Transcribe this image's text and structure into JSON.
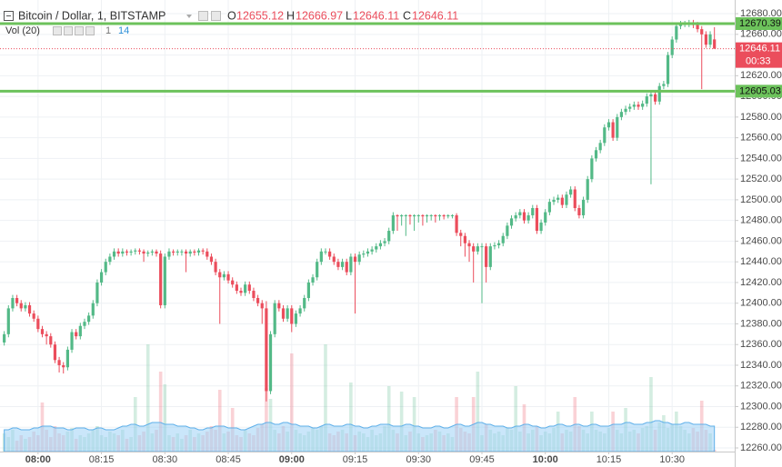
{
  "chart_data": {
    "type": "candlestick",
    "title": "Bitcoin / Dollar, 1, BITSTAMP",
    "ohlc_letters": [
      "O",
      "H",
      "L",
      "C"
    ],
    "volume_title": "Vol (20)",
    "countdown": "00:33",
    "up_color": "#53b987",
    "down_color": "#eb4d5c",
    "ma_color": "#9fd2f5",
    "grid": true,
    "xlim": [
      -1,
      172.8
    ],
    "xticks": [
      {
        "value": 8,
        "label": "08:00"
      },
      {
        "value": 23,
        "label": "08:15"
      },
      {
        "value": 38,
        "label": "08:30"
      },
      {
        "value": 53,
        "label": "08:45"
      },
      {
        "value": 68,
        "label": "09:00"
      },
      {
        "value": 83,
        "label": "09:15"
      },
      {
        "value": 98,
        "label": "09:30"
      },
      {
        "value": 113,
        "label": "09:45"
      },
      {
        "value": 128,
        "label": "10:00"
      },
      {
        "value": 143,
        "label": "10:15"
      },
      {
        "value": 158,
        "label": "10:30"
      }
    ],
    "ylim": [
      12256.5,
      12686.2
    ],
    "yticks": [
      {
        "value": 12260,
        "label": "12260.00"
      },
      {
        "value": 12280,
        "label": "12280.00"
      },
      {
        "value": 12300,
        "label": "12300.00"
      },
      {
        "value": 12320,
        "label": "12320.00"
      },
      {
        "value": 12340,
        "label": "12340.00"
      },
      {
        "value": 12360,
        "label": "12360.00"
      },
      {
        "value": 12380,
        "label": "12380.00"
      },
      {
        "value": 12400,
        "label": "12400.00"
      },
      {
        "value": 12420,
        "label": "12420.00"
      },
      {
        "value": 12440,
        "label": "12440.00"
      },
      {
        "value": 12460,
        "label": "12460.00"
      },
      {
        "value": 12480,
        "label": "12480.00"
      },
      {
        "value": 12500,
        "label": "12500.00"
      },
      {
        "value": 12520,
        "label": "12520.00"
      },
      {
        "value": 12540,
        "label": "12540.00"
      },
      {
        "value": 12560,
        "label": "12560.00"
      },
      {
        "value": 12580,
        "label": "12580.00"
      },
      {
        "value": 12600,
        "label": "12600.00"
      },
      {
        "value": 12620,
        "label": "12620.00"
      },
      {
        "value": 12640,
        "label": "12640.00"
      },
      {
        "value": 12660,
        "label": "12660.00"
      },
      {
        "value": 12680,
        "label": "12680.00"
      }
    ],
    "levels": [
      {
        "value": 12670.39,
        "color": "#6cc25b"
      },
      {
        "value": 12605.03,
        "color": "#6cc25b"
      }
    ],
    "open": [
      12362,
      12370,
      12395,
      12405,
      12400,
      12395,
      12398,
      12390,
      12385,
      12375,
      12370,
      12368,
      12360,
      12345,
      12340,
      12338,
      12355,
      12372,
      12368,
      12378,
      12382,
      12388,
      12400,
      12420,
      12430,
      12440,
      12445,
      12450,
      12448,
      12450,
      12449,
      12450,
      12451,
      12450,
      12448,
      12449,
      12450,
      12448,
      12398,
      12445,
      12450,
      12449,
      12450,
      12450,
      12448,
      12450,
      12449,
      12451,
      12450,
      12445,
      12440,
      12430,
      12425,
      12428,
      12422,
      12418,
      12412,
      12410,
      12418,
      12412,
      12405,
      12400,
      12395,
      12315,
      12370,
      12400,
      12395,
      12385,
      12395,
      12380,
      12390,
      12395,
      12405,
      12420,
      12425,
      12440,
      12450,
      12450,
      12445,
      12440,
      12435,
      12440,
      12430,
      12445,
      12440,
      12447,
      12448,
      12450,
      12452,
      12455,
      12458,
      12460,
      12470,
      12485,
      12484,
      12485,
      12485,
      12484,
      12485,
      12485,
      12484,
      12485,
      12485,
      12484,
      12485,
      12484,
      12485,
      12485,
      12468,
      12465,
      12458,
      12455,
      12450,
      12455,
      12455,
      12435,
      12455,
      12456,
      12458,
      12465,
      12475,
      12482,
      12485,
      12488,
      12480,
      12485,
      12492,
      12470,
      12478,
      12488,
      12498,
      12500,
      12502,
      12495,
      12505,
      12510,
      12492,
      12485,
      12500,
      12520,
      12540,
      12548,
      12555,
      12570,
      12575,
      12560,
      12580,
      12585,
      12588,
      12590,
      12592,
      12590,
      12593,
      12600,
      12602,
      12595,
      12610,
      12612,
      12640,
      12655,
      12668,
      12670,
      12670,
      12671,
      12669,
      12665,
      12660,
      12650,
      12655.12
    ],
    "high": [
      12373,
      12398,
      12408,
      12408,
      12403,
      12401,
      12401,
      12393,
      12388,
      12378,
      12373,
      12371,
      12363,
      12348,
      12343,
      12358,
      12375,
      12375,
      12381,
      12385,
      12391,
      12403,
      12423,
      12433,
      12443,
      12448,
      12453,
      12453,
      12453,
      12452,
      12452,
      12453,
      12453,
      12452,
      12451,
      12452,
      12452,
      12451,
      12448,
      12453,
      12452,
      12452,
      12452,
      12452,
      12452,
      12452,
      12453,
      12453,
      12453,
      12448,
      12443,
      12433,
      12431,
      12431,
      12425,
      12421,
      12415,
      12421,
      12421,
      12415,
      12408,
      12403,
      12402,
      12373,
      12403,
      12403,
      12398,
      12398,
      12398,
      12393,
      12398,
      12408,
      12423,
      12428,
      12443,
      12453,
      12453,
      12453,
      12448,
      12443,
      12443,
      12443,
      12448,
      12448,
      12450,
      12451,
      12453,
      12455,
      12458,
      12461,
      12463,
      12473,
      12488,
      12486,
      12486,
      12486,
      12486,
      12486,
      12486,
      12486,
      12486,
      12486,
      12486,
      12486,
      12486,
      12486,
      12486,
      12487,
      12471,
      12468,
      12461,
      12458,
      12458,
      12458,
      12458,
      12458,
      12459,
      12461,
      12468,
      12478,
      12485,
      12488,
      12491,
      12491,
      12488,
      12495,
      12495,
      12481,
      12491,
      12501,
      12503,
      12505,
      12505,
      12508,
      12513,
      12513,
      12495,
      12503,
      12523,
      12543,
      12551,
      12558,
      12573,
      12578,
      12578,
      12583,
      12588,
      12591,
      12593,
      12595,
      12595,
      12596,
      12603,
      12605,
      12605,
      12613,
      12615,
      12643,
      12658,
      12671,
      12673,
      12673,
      12674,
      12674,
      12672,
      12668,
      12663,
      12663,
      12666.97
    ],
    "low": [
      12359,
      12367,
      12392,
      12397,
      12392,
      12392,
      12387,
      12382,
      12372,
      12367,
      12360,
      12357,
      12342,
      12333,
      12332,
      12335,
      12352,
      12365,
      12365,
      12375,
      12379,
      12385,
      12397,
      12417,
      12427,
      12437,
      12442,
      12445,
      12445,
      12446,
      12446,
      12447,
      12447,
      12440,
      12445,
      12446,
      12445,
      12395,
      12395,
      12442,
      12446,
      12446,
      12446,
      12430,
      12445,
      12446,
      12446,
      12447,
      12442,
      12437,
      12427,
      12380,
      12422,
      12419,
      12415,
      12409,
      12407,
      12407,
      12409,
      12402,
      12397,
      12380,
      12305,
      12312,
      12367,
      12392,
      12382,
      12382,
      12372,
      12377,
      12387,
      12392,
      12402,
      12417,
      12422,
      12437,
      12447,
      12442,
      12437,
      12432,
      12432,
      12427,
      12427,
      12390,
      12437,
      12444,
      12445,
      12447,
      12449,
      12452,
      12455,
      12457,
      12467,
      12470,
      12475,
      12465,
      12476,
      12470,
      12478,
      12475,
      12478,
      12480,
      12478,
      12480,
      12481,
      12482,
      12482,
      12465,
      12455,
      12445,
      12440,
      12420,
      12447,
      12400,
      12420,
      12432,
      12452,
      12453,
      12455,
      12462,
      12472,
      12479,
      12482,
      12477,
      12477,
      12482,
      12467,
      12467,
      12475,
      12485,
      12495,
      12497,
      12492,
      12492,
      12502,
      12489,
      12482,
      12482,
      12497,
      12517,
      12537,
      12545,
      12552,
      12567,
      12557,
      12557,
      12577,
      12582,
      12585,
      12587,
      12587,
      12587,
      12590,
      12515,
      12592,
      12592,
      12607,
      12609,
      12637,
      12652,
      12665,
      12667,
      12667,
      12666,
      12662,
      12607,
      12647,
      12647,
      12646.11
    ],
    "close": [
      12370,
      12395,
      12405,
      12400,
      12395,
      12398,
      12390,
      12385,
      12375,
      12370,
      12368,
      12360,
      12345,
      12340,
      12338,
      12355,
      12372,
      12368,
      12378,
      12382,
      12388,
      12400,
      12420,
      12430,
      12440,
      12445,
      12450,
      12448,
      12450,
      12449,
      12450,
      12451,
      12450,
      12448,
      12449,
      12450,
      12448,
      12398,
      12445,
      12450,
      12449,
      12450,
      12450,
      12448,
      12450,
      12449,
      12451,
      12450,
      12445,
      12440,
      12430,
      12425,
      12428,
      12422,
      12418,
      12412,
      12410,
      12418,
      12412,
      12405,
      12400,
      12395,
      12315,
      12370,
      12400,
      12395,
      12385,
      12395,
      12380,
      12390,
      12395,
      12405,
      12420,
      12425,
      12440,
      12450,
      12450,
      12445,
      12440,
      12435,
      12440,
      12430,
      12445,
      12440,
      12447,
      12448,
      12450,
      12452,
      12455,
      12458,
      12460,
      12470,
      12485,
      12484,
      12485,
      12485,
      12484,
      12485,
      12485,
      12484,
      12485,
      12485,
      12484,
      12485,
      12484,
      12485,
      12485,
      12468,
      12465,
      12458,
      12455,
      12450,
      12455,
      12455,
      12435,
      12455,
      12456,
      12458,
      12465,
      12475,
      12482,
      12485,
      12488,
      12480,
      12485,
      12492,
      12470,
      12478,
      12488,
      12498,
      12500,
      12502,
      12495,
      12505,
      12510,
      12492,
      12485,
      12500,
      12520,
      12540,
      12548,
      12555,
      12570,
      12575,
      12560,
      12580,
      12585,
      12588,
      12590,
      12592,
      12590,
      12593,
      12600,
      12602,
      12595,
      12610,
      12612,
      12640,
      12655,
      12668,
      12670,
      12670,
      12671,
      12669,
      12665,
      12660,
      12650,
      12660,
      12646.11
    ],
    "volume": [
      10,
      8,
      12,
      6,
      9,
      7,
      8,
      11,
      9,
      27,
      12,
      8,
      14,
      10,
      9,
      11,
      13,
      7,
      9,
      8,
      10,
      12,
      14,
      9,
      8,
      11,
      10,
      9,
      12,
      7,
      8,
      30,
      9,
      11,
      59,
      10,
      12,
      44,
      37,
      9,
      8,
      10,
      7,
      9,
      12,
      8,
      10,
      9,
      11,
      14,
      12,
      34,
      10,
      11,
      24,
      9,
      8,
      12,
      10,
      9,
      13,
      15,
      35,
      29,
      12,
      10,
      14,
      11,
      54,
      12,
      10,
      9,
      11,
      13,
      12,
      14,
      59,
      10,
      9,
      11,
      12,
      10,
      38,
      9,
      11,
      10,
      8,
      12,
      9,
      10,
      14,
      36,
      12,
      10,
      33,
      9,
      11,
      30,
      10,
      8,
      9,
      10,
      12,
      11,
      9,
      10,
      8,
      30,
      13,
      11,
      10,
      30,
      44,
      9,
      15,
      12,
      10,
      11,
      9,
      13,
      12,
      36,
      11,
      26,
      10,
      12,
      14,
      9,
      11,
      10,
      13,
      22,
      10,
      12,
      11,
      30,
      14,
      12,
      10,
      22,
      12,
      11,
      10,
      13,
      22,
      12,
      10,
      24,
      11,
      12,
      10,
      13,
      14,
      41,
      12,
      16,
      20,
      13,
      15,
      22,
      14,
      12,
      10,
      13,
      11,
      28,
      12,
      10,
      1
    ],
    "volume_ma": [
      12,
      12,
      13,
      13,
      12,
      12,
      12,
      13,
      13,
      14,
      14,
      14,
      13,
      13,
      13,
      12,
      12,
      13,
      13,
      13,
      12,
      12,
      13,
      13,
      12,
      12,
      12,
      13,
      14,
      14,
      15,
      15,
      14,
      14,
      15,
      16,
      16,
      16,
      15,
      15,
      15,
      14,
      14,
      14,
      13,
      13,
      12,
      12,
      13,
      13,
      14,
      14,
      14,
      13,
      13,
      13,
      12,
      12,
      13,
      14,
      15,
      15,
      16,
      16,
      15,
      15,
      16,
      16,
      15,
      15,
      14,
      14,
      14,
      13,
      13,
      14,
      15,
      15,
      14,
      14,
      14,
      15,
      15,
      14,
      14,
      13,
      13,
      14,
      14,
      15,
      15,
      15,
      14,
      14,
      14,
      15,
      15,
      14,
      14,
      13,
      13,
      13,
      14,
      14,
      13,
      13,
      14,
      15,
      15,
      14,
      14,
      15,
      16,
      16,
      15,
      15,
      14,
      14,
      14,
      13,
      13,
      14,
      14,
      15,
      15,
      14,
      14,
      13,
      13,
      14,
      14,
      15,
      15,
      14,
      14,
      15,
      15,
      14,
      14,
      15,
      15,
      14,
      14,
      14,
      15,
      15,
      15,
      16,
      16,
      15,
      15,
      15,
      16,
      16,
      17,
      17,
      16,
      16,
      15,
      15,
      15,
      16,
      16,
      15,
      15,
      15,
      15,
      14,
      14
    ]
  }
}
